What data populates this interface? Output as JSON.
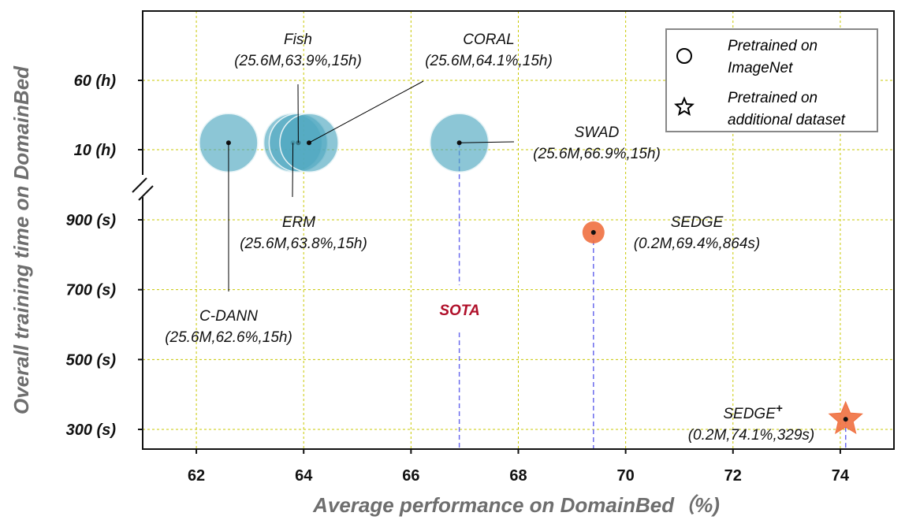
{
  "chart_data": {
    "type": "scatter",
    "title": "",
    "xlabel": "Average performance on DomainBed（%)",
    "ylabel": "Overall training time on DomainBed",
    "xlim": [
      61.0,
      75.0
    ],
    "xticks": [
      62,
      64,
      66,
      68,
      70,
      72,
      74
    ],
    "xtick_labels": [
      "62",
      "64",
      "66",
      "68",
      "70",
      "72",
      "74"
    ],
    "y_axis": {
      "scale": "broken",
      "lower_segment_seconds": [
        250,
        950
      ],
      "upper_segment_hours": [
        0,
        100
      ],
      "ticks": [
        {
          "value": 300,
          "unit": "s",
          "label": "300 (s)"
        },
        {
          "value": 500,
          "unit": "s",
          "label": "500 (s)"
        },
        {
          "value": 700,
          "unit": "s",
          "label": "700 (s)"
        },
        {
          "value": 900,
          "unit": "s",
          "label": "900 (s)"
        },
        {
          "value": 10,
          "unit": "h",
          "label": "10 (h)"
        },
        {
          "value": 60,
          "unit": "h",
          "label": "60 (h)"
        }
      ]
    },
    "grid": true,
    "grid_color": "#c8c800",
    "legend": {
      "position": "top-right",
      "entries": [
        {
          "marker": "circle",
          "label_line1": "Pretrained on",
          "label_line2": "ImageNet"
        },
        {
          "marker": "star",
          "label_line1": "Pretrained on",
          "label_line2": "additional dataset"
        }
      ]
    },
    "points": [
      {
        "name": "C-DANN",
        "params": "25.6M",
        "x": 62.6,
        "time": "15h",
        "y_unit": "h",
        "y": 15,
        "marker": "circle",
        "label": "(25.6M,62.6%,15h)"
      },
      {
        "name": "ERM",
        "params": "25.6M",
        "x": 63.8,
        "time": "15h",
        "y_unit": "h",
        "y": 15,
        "marker": "circle",
        "label": "(25.6M,63.8%,15h)"
      },
      {
        "name": "Fish",
        "params": "25.6M",
        "x": 63.9,
        "time": "15h",
        "y_unit": "h",
        "y": 15,
        "marker": "circle",
        "label": "(25.6M,63.9%,15h)"
      },
      {
        "name": "CORAL",
        "params": "25.6M",
        "x": 64.1,
        "time": "15h",
        "y_unit": "h",
        "y": 15,
        "marker": "circle",
        "label": "(25.6M,64.1%,15h)"
      },
      {
        "name": "SWAD",
        "params": "25.6M",
        "x": 66.9,
        "time": "15h",
        "y_unit": "h",
        "y": 15,
        "marker": "circle",
        "label": "(25.6M,66.9%,15h)"
      },
      {
        "name": "SEDGE",
        "params": "0.2M",
        "x": 69.4,
        "time": "864s",
        "y_unit": "s",
        "y": 864,
        "marker": "circle",
        "label": "(0.2M,69.4%,864s)"
      },
      {
        "name": "SEDGE",
        "name_sup": "+",
        "params": "0.2M",
        "x": 74.1,
        "time": "329s",
        "y_unit": "s",
        "y": 329,
        "marker": "star",
        "label": "(0.2M,74.1%,329s)"
      }
    ],
    "annotations": [
      {
        "text": "SOTA",
        "color": "#b0102a"
      }
    ],
    "colors": {
      "large_model": "#4fa8c0",
      "small_model": "#f07040",
      "reference_line": "#6a6aee",
      "label_line": "#000000"
    }
  }
}
